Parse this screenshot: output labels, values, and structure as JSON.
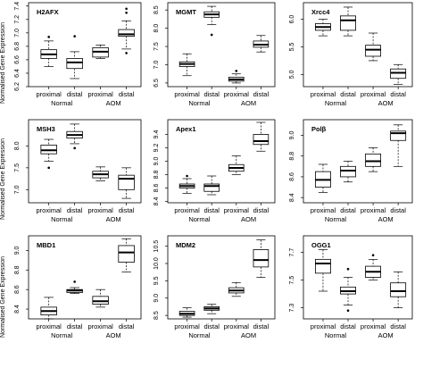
{
  "figure": {
    "ylabel": "Normalised Gene Expression",
    "group_labels": [
      "Normal",
      "AOM"
    ],
    "category_labels": [
      "proximal",
      "distal",
      "proximal",
      "distal"
    ]
  },
  "chart_data": [
    {
      "type": "box",
      "title": "H2AFX",
      "categories": [
        "proximal",
        "distal",
        "proximal",
        "distal"
      ],
      "groups": [
        "Normal",
        "AOM"
      ],
      "yticks": [
        6.2,
        6.4,
        6.6,
        6.8,
        7.0,
        7.2,
        7.4
      ],
      "ylim": [
        6.2,
        7.45
      ],
      "boxes": [
        {
          "min": 6.5,
          "q1": 6.62,
          "median": 6.68,
          "q3": 6.75,
          "max": 6.88,
          "outliers": [
            6.94
          ]
        },
        {
          "min": 6.32,
          "q1": 6.47,
          "median": 6.56,
          "q3": 6.62,
          "max": 6.72,
          "outliers": [
            6.95
          ]
        },
        {
          "min": 6.62,
          "q1": 6.64,
          "median": 6.72,
          "q3": 6.78,
          "max": 6.82,
          "outliers": []
        },
        {
          "min": 6.76,
          "q1": 6.95,
          "median": 6.98,
          "q3": 7.05,
          "max": 7.18,
          "outliers": [
            6.7,
            7.3,
            7.36
          ]
        }
      ]
    },
    {
      "type": "box",
      "title": "MGMT",
      "categories": [
        "proximal",
        "distal",
        "proximal",
        "distal"
      ],
      "groups": [
        "Normal",
        "AOM"
      ],
      "yticks": [
        6.5,
        7.0,
        7.5,
        8.0,
        8.5
      ],
      "ylim": [
        6.4,
        8.7
      ],
      "boxes": [
        {
          "min": 6.7,
          "q1": 6.95,
          "median": 7.02,
          "q3": 7.08,
          "max": 7.3,
          "outliers": []
        },
        {
          "min": 8.1,
          "q1": 8.3,
          "median": 8.38,
          "q3": 8.45,
          "max": 8.6,
          "outliers": [
            7.82
          ]
        },
        {
          "min": 6.5,
          "q1": 6.55,
          "median": 6.6,
          "q3": 6.66,
          "max": 6.75,
          "outliers": [
            6.83
          ]
        },
        {
          "min": 7.35,
          "q1": 7.48,
          "median": 7.55,
          "q3": 7.65,
          "max": 7.8,
          "outliers": []
        }
      ]
    },
    {
      "type": "box",
      "title": "Xrcc4",
      "categories": [
        "proximal",
        "distal",
        "proximal",
        "distal"
      ],
      "groups": [
        "Normal",
        "AOM"
      ],
      "yticks": [
        5.0,
        5.5,
        6.0
      ],
      "ylim": [
        4.78,
        6.3
      ],
      "boxes": [
        {
          "min": 5.7,
          "q1": 5.8,
          "median": 5.86,
          "q3": 5.92,
          "max": 6.0,
          "outliers": []
        },
        {
          "min": 5.7,
          "q1": 5.8,
          "median": 5.98,
          "q3": 6.06,
          "max": 6.22,
          "outliers": []
        },
        {
          "min": 5.25,
          "q1": 5.33,
          "median": 5.45,
          "q3": 5.53,
          "max": 5.75,
          "outliers": []
        },
        {
          "min": 4.82,
          "q1": 4.93,
          "median": 5.03,
          "q3": 5.1,
          "max": 5.18,
          "outliers": []
        }
      ]
    },
    {
      "type": "box",
      "title": "MSH3",
      "categories": [
        "proximal",
        "distal",
        "proximal",
        "distal"
      ],
      "groups": [
        "Normal",
        "AOM"
      ],
      "yticks": [
        7.0,
        7.5,
        8.0
      ],
      "ylim": [
        6.7,
        8.6
      ],
      "boxes": [
        {
          "min": 7.65,
          "q1": 7.82,
          "median": 7.9,
          "q3": 8.02,
          "max": 8.15,
          "outliers": [
            7.5
          ]
        },
        {
          "min": 8.05,
          "q1": 8.18,
          "median": 8.25,
          "q3": 8.33,
          "max": 8.5,
          "outliers": [
            7.95
          ]
        },
        {
          "min": 7.2,
          "q1": 7.27,
          "median": 7.35,
          "q3": 7.42,
          "max": 7.52,
          "outliers": []
        },
        {
          "min": 6.8,
          "q1": 7.0,
          "median": 7.25,
          "q3": 7.33,
          "max": 7.5,
          "outliers": []
        }
      ]
    },
    {
      "type": "box",
      "title": "Apex1",
      "categories": [
        "proximal",
        "distal",
        "proximal",
        "distal"
      ],
      "groups": [
        "Normal",
        "AOM"
      ],
      "yticks": [
        8.4,
        8.6,
        8.8,
        9.0,
        9.2,
        9.4
      ],
      "ylim": [
        8.38,
        9.62
      ],
      "boxes": [
        {
          "min": 8.52,
          "q1": 8.6,
          "median": 8.63,
          "q3": 8.66,
          "max": 8.74,
          "outliers": [
            8.78
          ]
        },
        {
          "min": 8.5,
          "q1": 8.55,
          "median": 8.63,
          "q3": 8.66,
          "max": 8.78,
          "outliers": []
        },
        {
          "min": 8.8,
          "q1": 8.85,
          "median": 8.9,
          "q3": 8.95,
          "max": 9.08,
          "outliers": []
        },
        {
          "min": 9.15,
          "q1": 9.25,
          "median": 9.3,
          "q3": 9.4,
          "max": 9.58,
          "outliers": []
        }
      ]
    },
    {
      "type": "box",
      "title": "Polβ",
      "categories": [
        "proximal",
        "distal",
        "proximal",
        "distal"
      ],
      "groups": [
        "Normal",
        "AOM"
      ],
      "yticks": [
        8.4,
        8.6,
        8.8,
        9.0
      ],
      "ylim": [
        8.35,
        9.15
      ],
      "boxes": [
        {
          "min": 8.45,
          "q1": 8.5,
          "median": 8.57,
          "q3": 8.65,
          "max": 8.72,
          "outliers": []
        },
        {
          "min": 8.55,
          "q1": 8.6,
          "median": 8.66,
          "q3": 8.7,
          "max": 8.75,
          "outliers": []
        },
        {
          "min": 8.65,
          "q1": 8.7,
          "median": 8.75,
          "q3": 8.82,
          "max": 8.88,
          "outliers": []
        },
        {
          "min": 8.7,
          "q1": 8.95,
          "median": 9.02,
          "q3": 9.04,
          "max": 9.1,
          "outliers": []
        }
      ]
    },
    {
      "type": "box",
      "title": "MBD1",
      "categories": [
        "proximal",
        "distal",
        "proximal",
        "distal"
      ],
      "groups": [
        "Normal",
        "AOM"
      ],
      "yticks": [
        8.4,
        8.6,
        8.8,
        9.0
      ],
      "ylim": [
        8.3,
        9.15
      ],
      "boxes": [
        {
          "min": 8.3,
          "q1": 8.34,
          "median": 8.38,
          "q3": 8.42,
          "max": 8.52,
          "outliers": []
        },
        {
          "min": 8.56,
          "q1": 8.57,
          "median": 8.59,
          "q3": 8.6,
          "max": 8.62,
          "outliers": [
            8.68
          ]
        },
        {
          "min": 8.42,
          "q1": 8.45,
          "median": 8.48,
          "q3": 8.53,
          "max": 8.6,
          "outliers": []
        },
        {
          "min": 8.78,
          "q1": 8.88,
          "median": 8.98,
          "q3": 9.05,
          "max": 9.12,
          "outliers": []
        }
      ]
    },
    {
      "type": "box",
      "title": "MDM2",
      "categories": [
        "proximal",
        "distal",
        "proximal",
        "distal"
      ],
      "groups": [
        "Normal",
        "AOM"
      ],
      "yticks": [
        8.5,
        9.0,
        9.5,
        10.0,
        10.5
      ],
      "ylim": [
        8.4,
        10.8
      ],
      "boxes": [
        {
          "min": 8.45,
          "q1": 8.5,
          "median": 8.55,
          "q3": 8.62,
          "max": 8.72,
          "outliers": []
        },
        {
          "min": 8.55,
          "q1": 8.65,
          "median": 8.7,
          "q3": 8.75,
          "max": 8.82,
          "outliers": []
        },
        {
          "min": 9.05,
          "q1": 9.15,
          "median": 9.22,
          "q3": 9.3,
          "max": 9.45,
          "outliers": []
        },
        {
          "min": 9.6,
          "q1": 9.9,
          "median": 10.1,
          "q3": 10.4,
          "max": 10.68,
          "outliers": []
        }
      ]
    },
    {
      "type": "box",
      "title": "OGG1",
      "categories": [
        "proximal",
        "distal",
        "proximal",
        "distal"
      ],
      "groups": [
        "Normal",
        "AOM"
      ],
      "yticks": [
        7.3,
        7.5,
        7.7
      ],
      "ylim": [
        7.22,
        7.82
      ],
      "boxes": [
        {
          "min": 7.42,
          "q1": 7.55,
          "median": 7.62,
          "q3": 7.65,
          "max": 7.72,
          "outliers": []
        },
        {
          "min": 7.32,
          "q1": 7.4,
          "median": 7.42,
          "q3": 7.45,
          "max": 7.52,
          "outliers": [
            7.28,
            7.58
          ]
        },
        {
          "min": 7.5,
          "q1": 7.52,
          "median": 7.56,
          "q3": 7.6,
          "max": 7.65,
          "outliers": [
            7.68
          ]
        },
        {
          "min": 7.3,
          "q1": 7.38,
          "median": 7.42,
          "q3": 7.48,
          "max": 7.56,
          "outliers": []
        }
      ]
    }
  ]
}
